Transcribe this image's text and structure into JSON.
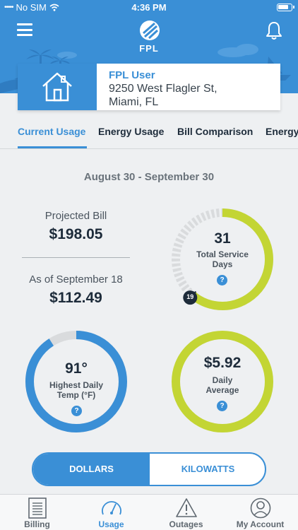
{
  "status_bar": {
    "carrier": "No SIM",
    "time": "4:36 PM"
  },
  "header": {
    "logo_text": "FPL"
  },
  "account": {
    "name": "FPL User",
    "address_line1": "9250 West Flagler St,",
    "address_line2": "Miami, FL"
  },
  "tabs": [
    {
      "label": "Current Usage",
      "active": true
    },
    {
      "label": "Energy Usage",
      "active": false
    },
    {
      "label": "Bill Comparison",
      "active": false
    },
    {
      "label": "Energy",
      "active": false
    }
  ],
  "period": "August 30 - September 30",
  "projected_bill": {
    "label": "Projected Bill",
    "value": "$198.05"
  },
  "as_of": {
    "label": "As of September 18",
    "value": "$112.49"
  },
  "service_days": {
    "value": "31",
    "label_line1": "Total Service",
    "label_line2": "Days",
    "current_day": "19",
    "progress_fraction": 0.61
  },
  "highest_temp": {
    "value": "91°",
    "label_line1": "Highest Daily",
    "label_line2": "Temp (°F)",
    "progress_fraction": 0.91
  },
  "daily_average": {
    "value": "$5.92",
    "label_line1": "Daily",
    "label_line2": "Average"
  },
  "help_symbol": "?",
  "toggle": {
    "left_label": "DOLLARS",
    "right_label": "KILOWATTS",
    "selected": "DOLLARS"
  },
  "bottom_nav": [
    {
      "label": "Billing",
      "icon": "billing-document-icon",
      "active": false
    },
    {
      "label": "Usage",
      "icon": "speedometer-icon",
      "active": true
    },
    {
      "label": "Outages",
      "icon": "warning-icon",
      "active": false
    },
    {
      "label": "My Account",
      "icon": "person-icon",
      "active": false
    }
  ],
  "colors": {
    "primary_blue": "#3a8fd6",
    "lime_green": "#c3d534",
    "track_gray": "#d9dbdd",
    "dark_navy": "#1d2b3a"
  }
}
